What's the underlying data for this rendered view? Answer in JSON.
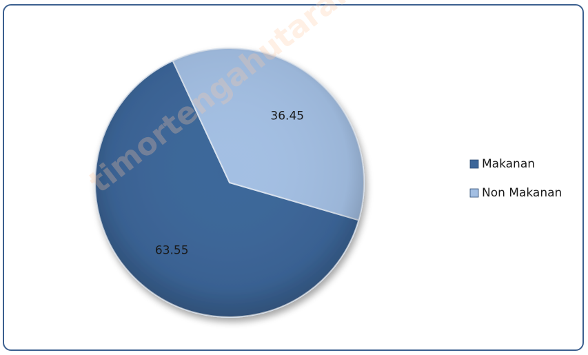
{
  "chart_data": {
    "type": "pie",
    "title": "",
    "categories": [
      "Makanan",
      "Non Makanan"
    ],
    "values": [
      63.55,
      36.45
    ],
    "data_labels": [
      "63.55",
      "36.45"
    ],
    "colors": [
      "#3c6699",
      "#a3bfe3"
    ],
    "legend": {
      "position": "right",
      "entries": [
        "Makanan",
        "Non Makanan"
      ]
    }
  },
  "watermark": "timortengahutarakab.bp"
}
